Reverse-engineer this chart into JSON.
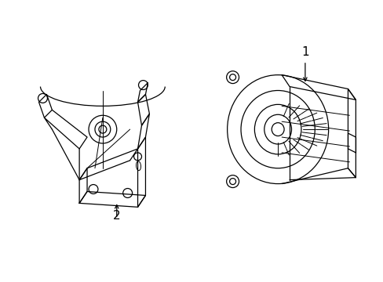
{
  "background_color": "#ffffff",
  "line_color": "#000000",
  "label_1": "1",
  "label_2": "2",
  "label_fontsize": 11,
  "figsize": [
    4.89,
    3.6
  ],
  "dpi": 100
}
